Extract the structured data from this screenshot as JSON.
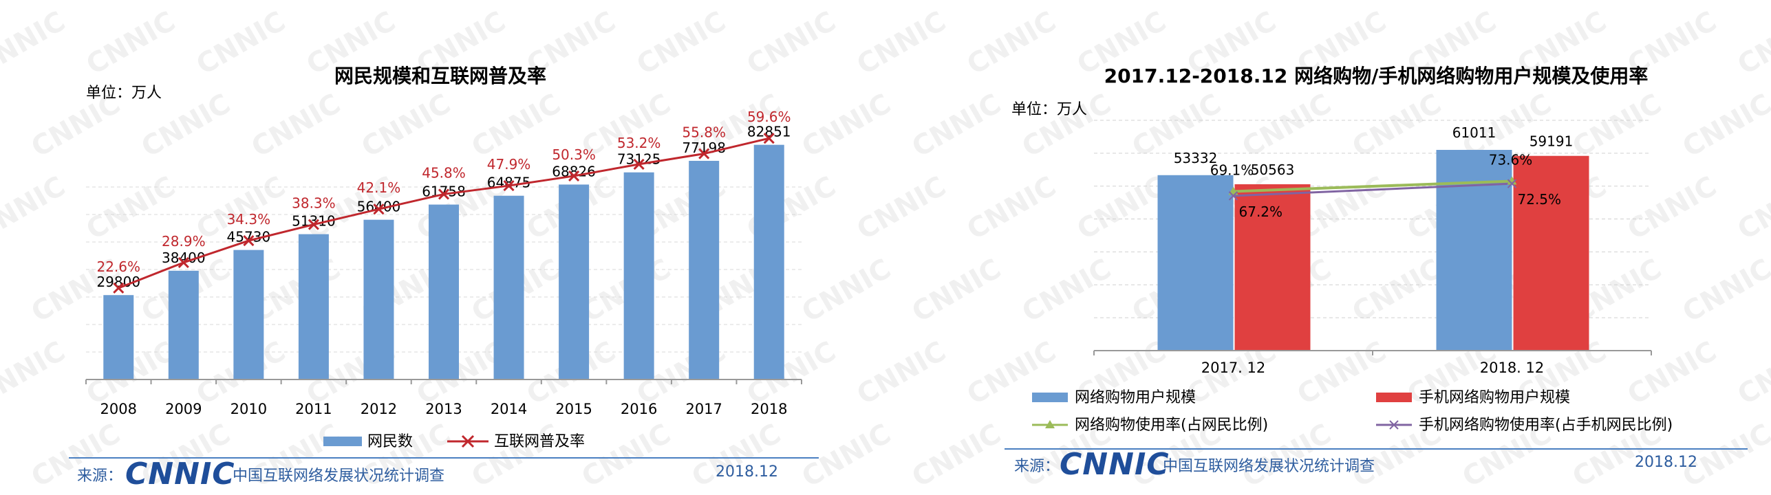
{
  "left": {
    "title": "网民规模和互联网普及率",
    "unit": "单位：万人",
    "legend": {
      "bar": "网民数",
      "line": "互联网普及率"
    },
    "footer": {
      "source_label": "来源：",
      "logo": "CNNIC",
      "survey": "中国互联网络发展状况统计调查",
      "date": "2018.12"
    }
  },
  "right": {
    "title": "2017.12-2018.12 网络购物/手机网络购物用户规模及使用率",
    "unit": "单位：万人",
    "footer": {
      "source_label": "来源：",
      "logo": "CNNIC",
      "survey": "中国互联网络发展状况统计调查",
      "date": "2018.12"
    }
  },
  "colors": {
    "blue_bar": "#6a9bd1",
    "red_bar": "#e04040",
    "red_line": "#c0272d",
    "green_line": "#9bbb59",
    "purple_line": "#8064a2",
    "footer_blue": "#2e5d9f"
  },
  "chart_data": [
    {
      "type": "bar",
      "title": "网民规模和互联网普及率",
      "categories": [
        "2008",
        "2009",
        "2010",
        "2011",
        "2012",
        "2013",
        "2014",
        "2015",
        "2016",
        "2017",
        "2018"
      ],
      "series": [
        {
          "name": "网民数",
          "type": "bar",
          "values": [
            29800,
            38400,
            45730,
            51310,
            56400,
            61758,
            64875,
            68826,
            73125,
            77198,
            82851
          ],
          "labels": [
            "29800",
            "38400",
            "45730",
            "51310",
            "56400",
            "61758",
            "64875",
            "68826",
            "73125",
            "77198",
            "82851"
          ]
        },
        {
          "name": "互联网普及率",
          "type": "line",
          "values": [
            22.6,
            28.9,
            34.3,
            38.3,
            42.1,
            45.8,
            47.9,
            50.3,
            53.2,
            55.8,
            59.6
          ],
          "labels": [
            "22.6%",
            "28.9%",
            "34.3%",
            "38.3%",
            "42.1%",
            "45.8%",
            "47.9%",
            "50.3%",
            "53.2%",
            "55.8%",
            "59.6%"
          ]
        }
      ],
      "ylim_bar": [
        0,
        100000
      ],
      "ylim_line": [
        0,
        70
      ],
      "grid": true,
      "legend": "bottom"
    },
    {
      "type": "bar",
      "title": "2017.12-2018.12 网络购物/手机网络购物用户规模及使用率",
      "categories": [
        "2017. 12",
        "2018. 12"
      ],
      "series": [
        {
          "name": "网络购物用户规模",
          "type": "bar",
          "values": [
            53332,
            61011
          ],
          "labels": [
            "53332",
            "61011"
          ]
        },
        {
          "name": "手机网络购物用户规模",
          "type": "bar",
          "values": [
            50563,
            59191
          ],
          "labels": [
            "50563",
            "59191"
          ]
        },
        {
          "name": "网络购物使用率(占网民比例)",
          "type": "line",
          "values": [
            69.1,
            73.6
          ],
          "labels": [
            "69.1%",
            "73.6%"
          ]
        },
        {
          "name": "手机网络购物使用率(占手机网民比例)",
          "type": "line",
          "values": [
            67.2,
            72.5
          ],
          "labels": [
            "67.2%",
            "72.5%"
          ]
        }
      ],
      "ylim_bar": [
        0,
        70000
      ],
      "ylim_line": [
        0,
        100
      ],
      "grid": true,
      "legend": "bottom"
    }
  ]
}
